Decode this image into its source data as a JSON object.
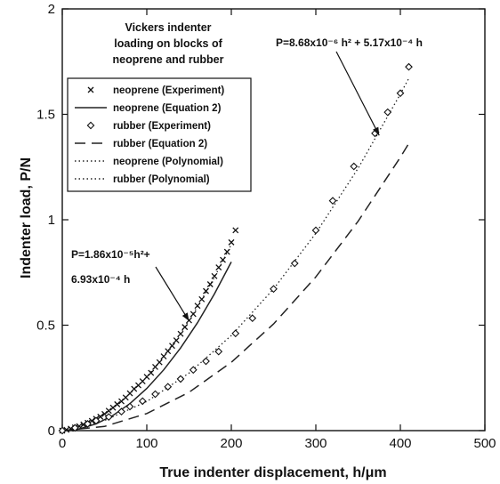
{
  "chart_data": {
    "type": "scatter",
    "title": "Vickers indenter loading on blocks of neoprene and rubber",
    "title_lines": [
      "Vickers indenter",
      "loading on blocks of",
      "neoprene and rubber"
    ],
    "xlabel": "True indenter displacement, h/μm",
    "ylabel": "Indenter load, P/N",
    "xlim": [
      0,
      500
    ],
    "ylim": [
      0,
      2
    ],
    "xticks": [
      "0",
      "100",
      "200",
      "300",
      "400",
      "500"
    ],
    "yticks": [
      "0",
      "0.5",
      "1",
      "1.5",
      "2"
    ],
    "grid": false,
    "legend_position": "top-left",
    "annotations": [
      {
        "lines": [
          "P=1.86x10⁻⁵h²+",
          "6.93x10⁻⁴ h"
        ],
        "points_to": [
          150,
          0.52
        ]
      },
      {
        "lines": [
          "P=8.68x10⁻⁶ h² + 5.17x10⁻⁴ h"
        ],
        "points_to": [
          375,
          1.4
        ]
      }
    ],
    "series": [
      {
        "name": "neoprene (Experiment)",
        "marker": "x",
        "x": [
          0,
          5,
          10,
          15,
          20,
          25,
          30,
          35,
          40,
          45,
          50,
          55,
          60,
          65,
          70,
          75,
          80,
          85,
          90,
          95,
          100,
          105,
          110,
          115,
          120,
          125,
          130,
          135,
          140,
          145,
          150,
          155,
          160,
          165,
          170,
          175,
          180,
          185,
          190,
          195,
          200,
          205
        ],
        "y": [
          0.0,
          0.004,
          0.009,
          0.015,
          0.021,
          0.029,
          0.037,
          0.046,
          0.056,
          0.066,
          0.079,
          0.094,
          0.109,
          0.125,
          0.139,
          0.157,
          0.177,
          0.198,
          0.215,
          0.234,
          0.255,
          0.274,
          0.302,
          0.324,
          0.352,
          0.377,
          0.402,
          0.428,
          0.459,
          0.491,
          0.523,
          0.553,
          0.592,
          0.623,
          0.662,
          0.694,
          0.733,
          0.774,
          0.81,
          0.848,
          0.893,
          0.95
        ]
      },
      {
        "name": "neoprene (Equation 2)",
        "style": "solid",
        "x": [
          0,
          20,
          40,
          60,
          80,
          100,
          120,
          140,
          160,
          180,
          200
        ],
        "y": [
          0,
          0.008,
          0.032,
          0.072,
          0.128,
          0.2,
          0.288,
          0.392,
          0.512,
          0.648,
          0.8
        ]
      },
      {
        "name": "rubber (Experiment)",
        "marker": "diamond",
        "x": [
          0,
          15,
          30,
          40,
          55,
          70,
          80,
          95,
          110,
          125,
          140,
          155,
          170,
          185,
          205,
          225,
          250,
          275,
          300,
          320,
          345,
          370,
          385,
          400,
          410
        ],
        "y": [
          0.0,
          0.013,
          0.032,
          0.047,
          0.065,
          0.09,
          0.114,
          0.14,
          0.173,
          0.208,
          0.245,
          0.288,
          0.329,
          0.375,
          0.461,
          0.533,
          0.672,
          0.793,
          0.95,
          1.09,
          1.253,
          1.41,
          1.51,
          1.6,
          1.725
        ]
      },
      {
        "name": "rubber (Equation 2)",
        "style": "dashed",
        "x": [
          0,
          50,
          100,
          150,
          200,
          250,
          300,
          350,
          400,
          410
        ],
        "y": [
          0,
          0.02,
          0.081,
          0.182,
          0.324,
          0.506,
          0.729,
          0.993,
          1.296,
          1.362
        ]
      },
      {
        "name": "neoprene (Polynomial)",
        "style": "dotted",
        "x": [
          0,
          20,
          40,
          60,
          80,
          100,
          120,
          140,
          160,
          180,
          200
        ],
        "y": [
          0.0,
          0.021,
          0.057,
          0.109,
          0.175,
          0.255,
          0.351,
          0.462,
          0.587,
          0.727,
          0.883
        ]
      },
      {
        "name": "rubber (Polynomial)",
        "style": "dotted",
        "x": [
          0,
          50,
          100,
          150,
          200,
          250,
          300,
          350,
          400,
          410
        ],
        "y": [
          0.0,
          0.048,
          0.138,
          0.273,
          0.451,
          0.672,
          0.936,
          1.244,
          1.596,
          1.671
        ]
      }
    ]
  }
}
